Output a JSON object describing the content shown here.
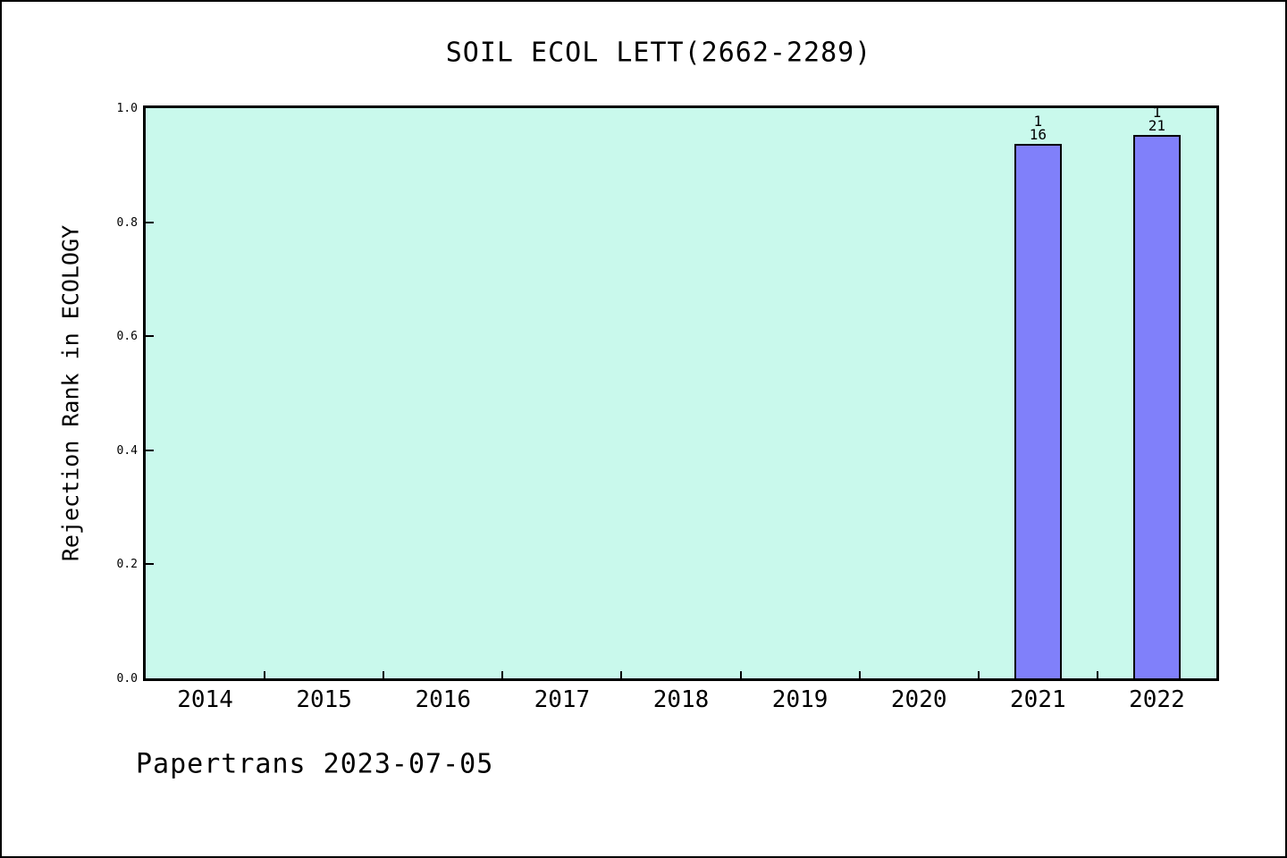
{
  "page": {
    "title": "SOIL ECOL LETT(2662-2289)",
    "footer": "Papertrans 2023-07-05"
  },
  "chart_data": {
    "type": "bar",
    "title": "SOIL ECOL LETT(2662-2289)",
    "xlabel": "",
    "ylabel": "Rejection Rank in ECOLOGY",
    "categories": [
      "2014",
      "2015",
      "2016",
      "2017",
      "2018",
      "2019",
      "2020",
      "2021",
      "2022"
    ],
    "bars": [
      {
        "category": "2021",
        "value": 0.9375,
        "label_numerator": "1",
        "label_denominator": "16"
      },
      {
        "category": "2022",
        "value": 0.9524,
        "label_numerator": "1",
        "label_denominator": "21"
      }
    ],
    "ylim": [
      0.0,
      1.0
    ],
    "yticks": [
      "0.0",
      "0.2",
      "0.4",
      "0.6",
      "0.8",
      "1.0"
    ],
    "grid": false,
    "legend": "none",
    "colors": {
      "bar_fill": "#8080fa",
      "bar_edge": "#000000",
      "plot_background": "#c9f9ec",
      "page_background": "#ffffff",
      "text": "#000000"
    },
    "footer": "Papertrans 2023-07-05"
  }
}
